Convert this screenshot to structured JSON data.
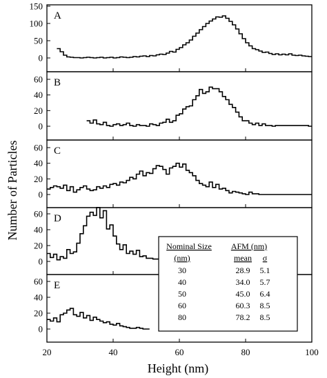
{
  "chart_data": {
    "type": "line",
    "xlabel": "Height (nm)",
    "ylabel": "Number of Particles",
    "xlim": [
      20,
      100
    ],
    "x_ticks": [
      20,
      40,
      60,
      80,
      100
    ],
    "panels": [
      {
        "label": "A",
        "ylim": [
          0,
          150
        ],
        "y_ticks": [
          0,
          50,
          100,
          150
        ],
        "x": [
          23,
          24,
          25,
          26,
          27,
          28,
          29,
          30,
          31,
          32,
          33,
          34,
          35,
          36,
          37,
          38,
          39,
          40,
          41,
          42,
          43,
          44,
          45,
          46,
          47,
          48,
          49,
          50,
          51,
          52,
          53,
          54,
          55,
          56,
          57,
          58,
          59,
          60,
          61,
          62,
          63,
          64,
          65,
          66,
          67,
          68,
          69,
          70,
          71,
          72,
          73,
          74,
          75,
          76,
          77,
          78,
          79,
          80,
          81,
          82,
          83,
          84,
          85,
          86,
          87,
          88,
          89,
          90,
          91,
          92,
          93,
          94,
          95,
          96,
          97,
          98,
          99
        ],
        "values": [
          27,
          18,
          8,
          3,
          2,
          1,
          1,
          0,
          1,
          2,
          1,
          0,
          1,
          2,
          0,
          1,
          2,
          0,
          1,
          3,
          2,
          1,
          2,
          4,
          3,
          5,
          6,
          4,
          7,
          6,
          9,
          11,
          10,
          14,
          19,
          17,
          25,
          30,
          38,
          44,
          52,
          63,
          72,
          82,
          91,
          100,
          107,
          113,
          119,
          118,
          122,
          115,
          106,
          96,
          84,
          70,
          56,
          44,
          35,
          27,
          24,
          20,
          16,
          17,
          13,
          10,
          12,
          9,
          11,
          9,
          12,
          8,
          7,
          8,
          6,
          5,
          4
        ]
      },
      {
        "label": "B",
        "ylim": [
          0,
          60
        ],
        "y_ticks": [
          0,
          20,
          40,
          60
        ],
        "x": [
          32,
          33,
          34,
          35,
          36,
          37,
          38,
          39,
          40,
          41,
          42,
          43,
          44,
          45,
          46,
          47,
          48,
          49,
          50,
          51,
          52,
          53,
          54,
          55,
          56,
          57,
          58,
          59,
          60,
          61,
          62,
          63,
          64,
          65,
          66,
          67,
          68,
          69,
          70,
          71,
          72,
          73,
          74,
          75,
          76,
          77,
          78,
          79,
          80,
          81,
          82,
          83,
          84,
          85,
          86,
          87,
          88,
          89,
          90,
          91,
          92,
          93,
          94,
          95,
          96,
          97,
          98,
          99
        ],
        "values": [
          7,
          4,
          8,
          3,
          2,
          5,
          1,
          0,
          2,
          3,
          1,
          2,
          4,
          1,
          0,
          2,
          1,
          1,
          0,
          3,
          2,
          1,
          4,
          5,
          9,
          5,
          7,
          14,
          16,
          22,
          25,
          26,
          34,
          39,
          47,
          42,
          44,
          50,
          48,
          48,
          44,
          38,
          34,
          28,
          24,
          18,
          12,
          7,
          7,
          4,
          2,
          4,
          1,
          3,
          1,
          1,
          0,
          1,
          1,
          1,
          1,
          1,
          1,
          1,
          1,
          1,
          1,
          0
        ]
      },
      {
        "label": "C",
        "ylim": [
          0,
          60
        ],
        "y_ticks": [
          0,
          20,
          40,
          60
        ],
        "x": [
          20,
          21,
          22,
          23,
          24,
          25,
          26,
          27,
          28,
          29,
          30,
          31,
          32,
          33,
          34,
          35,
          36,
          37,
          38,
          39,
          40,
          41,
          42,
          43,
          44,
          45,
          46,
          47,
          48,
          49,
          50,
          51,
          52,
          53,
          54,
          55,
          56,
          57,
          58,
          59,
          60,
          61,
          62,
          63,
          64,
          65,
          66,
          67,
          68,
          69,
          70,
          71,
          72,
          73,
          74,
          75,
          76,
          77,
          78,
          79,
          80,
          81,
          82,
          83,
          84,
          85,
          86,
          87,
          88,
          89,
          90,
          91,
          92,
          93,
          94,
          95,
          96,
          97,
          98,
          99
        ],
        "values": [
          7,
          9,
          11,
          10,
          8,
          12,
          5,
          10,
          3,
          6,
          9,
          11,
          7,
          5,
          6,
          10,
          8,
          11,
          9,
          13,
          14,
          12,
          16,
          15,
          18,
          22,
          20,
          26,
          30,
          24,
          28,
          27,
          33,
          37,
          36,
          32,
          26,
          34,
          36,
          40,
          35,
          39,
          31,
          28,
          24,
          18,
          14,
          12,
          10,
          16,
          9,
          13,
          7,
          8,
          5,
          2,
          4,
          3,
          2,
          1,
          0,
          3,
          1,
          1,
          0,
          0,
          0,
          0,
          0,
          0,
          0,
          0,
          0,
          0,
          0,
          0,
          0,
          0,
          0,
          0
        ]
      },
      {
        "label": "D",
        "ylim": [
          0,
          60
        ],
        "y_ticks": [
          0,
          20,
          40,
          60
        ],
        "x": [
          20,
          21,
          22,
          23,
          24,
          25,
          26,
          27,
          28,
          29,
          30,
          31,
          32,
          33,
          34,
          35,
          36,
          37,
          38,
          39,
          40,
          41,
          42,
          43,
          44,
          45,
          46,
          47,
          48,
          49,
          50,
          51,
          52,
          53,
          54,
          55
        ],
        "values": [
          10,
          5,
          9,
          2,
          6,
          4,
          15,
          10,
          12,
          23,
          35,
          45,
          57,
          62,
          58,
          68,
          55,
          64,
          41,
          46,
          32,
          22,
          15,
          21,
          10,
          13,
          9,
          14,
          6,
          7,
          4,
          4,
          3,
          3,
          2,
          1
        ]
      },
      {
        "label": "E",
        "ylim": [
          0,
          60
        ],
        "y_ticks": [
          0,
          20,
          40,
          60
        ],
        "x": [
          20,
          21,
          22,
          23,
          24,
          25,
          26,
          27,
          28,
          29,
          30,
          31,
          32,
          33,
          34,
          35,
          36,
          37,
          38,
          39,
          40,
          41,
          42,
          43,
          44,
          45,
          46,
          47,
          48,
          49,
          50
        ],
        "values": [
          12,
          10,
          14,
          9,
          18,
          20,
          24,
          26,
          18,
          16,
          21,
          14,
          17,
          11,
          15,
          12,
          10,
          8,
          9,
          6,
          5,
          7,
          4,
          3,
          2,
          1,
          1,
          2,
          1,
          0,
          0
        ]
      }
    ],
    "inset_table": {
      "header_left": "Nominal Size",
      "header_left_unit": "(nm)",
      "header_right": "AFM (nm)",
      "subheader_mean": "mean",
      "subheader_sigma": "σ",
      "rows": [
        {
          "nominal": "30",
          "mean": "28.9",
          "sigma": "5.1"
        },
        {
          "nominal": "40",
          "mean": "34.0",
          "sigma": "5.7"
        },
        {
          "nominal": "50",
          "mean": "45.0",
          "sigma": "6.4"
        },
        {
          "nominal": "60",
          "mean": "60.3",
          "sigma": "8.5"
        },
        {
          "nominal": "80",
          "mean": "78.2",
          "sigma": "8.5"
        }
      ]
    }
  }
}
